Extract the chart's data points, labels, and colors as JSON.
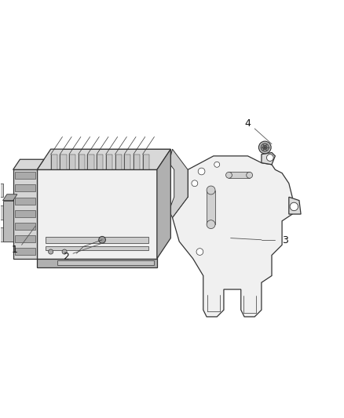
{
  "bg_color": "#ffffff",
  "line_color": "#333333",
  "label_color": "#111111",
  "fill_light": "#f0f0f0",
  "fill_mid": "#d8d8d8",
  "fill_dark": "#b0b0b0",
  "fill_darker": "#888888",
  "figsize": [
    4.39,
    5.33
  ],
  "dpi": 100,
  "label_fs": 9,
  "lw_main": 0.9,
  "lw_thin": 0.5,
  "lw_med": 0.7
}
